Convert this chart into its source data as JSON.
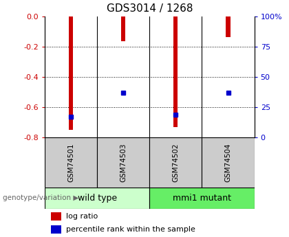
{
  "title": "GDS3014 / 1268",
  "samples": [
    "GSM74501",
    "GSM74503",
    "GSM74502",
    "GSM74504"
  ],
  "log_ratio_tops": [
    -0.75,
    -0.165,
    -0.73,
    -0.135
  ],
  "percentile_ranks": [
    17,
    37,
    19,
    37
  ],
  "group_configs": [
    {
      "indices": [
        0,
        1
      ],
      "label": "wild type",
      "color": "#ccffcc"
    },
    {
      "indices": [
        2,
        3
      ],
      "label": "mmi1 mutant",
      "color": "#66ee66"
    }
  ],
  "bar_color": "#cc0000",
  "marker_color": "#0000cc",
  "ylim_left": [
    -0.8,
    0.0
  ],
  "ylim_right": [
    0,
    100
  ],
  "yticks_left": [
    0.0,
    -0.2,
    -0.4,
    -0.6,
    -0.8
  ],
  "yticks_right": [
    0,
    25,
    50,
    75,
    100
  ],
  "ylabel_left_color": "#cc0000",
  "ylabel_right_color": "#0000cc",
  "sample_box_color": "#cccccc",
  "legend_items": [
    {
      "label": "log ratio",
      "color": "#cc0000"
    },
    {
      "label": "percentile rank within the sample",
      "color": "#0000cc"
    }
  ],
  "bar_width": 0.08,
  "title_fontsize": 11,
  "tick_fontsize": 8,
  "sample_fontsize": 7.5
}
